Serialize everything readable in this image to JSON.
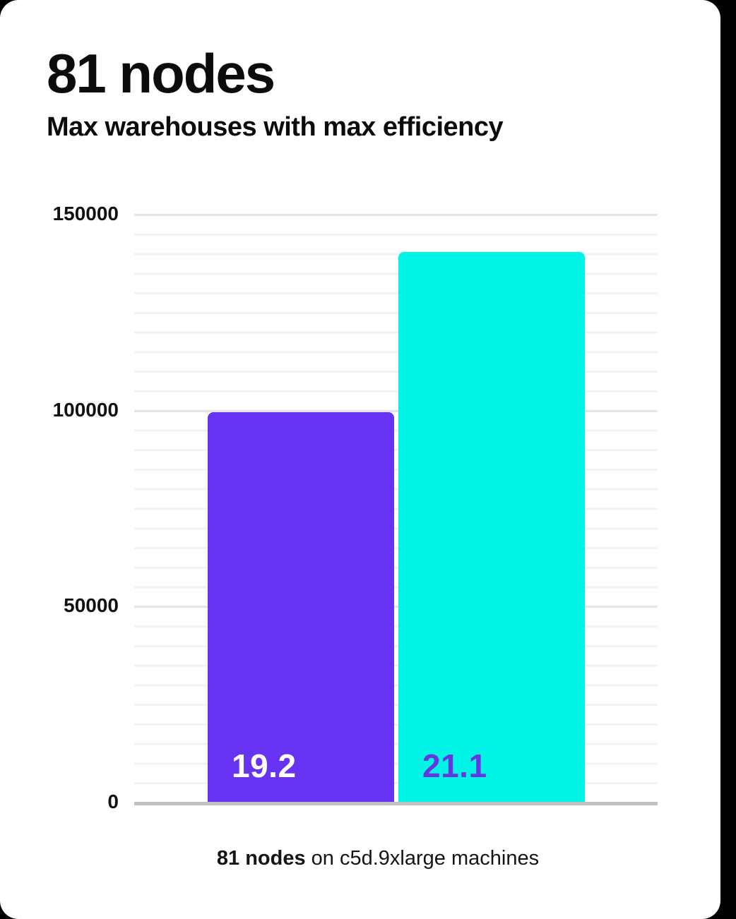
{
  "header": {
    "title": "81 nodes",
    "subtitle": "Max warehouses with max efficiency"
  },
  "caption": {
    "bold_part": "81 nodes",
    "rest_part": " on c5d.9xlarge machines"
  },
  "colors": {
    "purple": "#6733f2",
    "cyan": "#00f5e6",
    "white": "#ffffff",
    "cyan_bar_label_purple": "#6636e0",
    "card_background": "#ffffff",
    "axis_baseline": "#c2c2c6",
    "gridline_minor": "#f2f2f3",
    "gridline_major": "#e6e6e8"
  },
  "chart_data": {
    "type": "bar",
    "title": "81 nodes",
    "subtitle": "Max warehouses with max efficiency",
    "caption": "81 nodes on c5d.9xlarge machines",
    "categories": [
      "bar-1",
      "bar-2"
    ],
    "bars": [
      {
        "label": "19.2",
        "value": 99400,
        "color": "#6733f2",
        "label_color": "#ffffff"
      },
      {
        "label": "21.1",
        "value": 140300,
        "color": "#00f5e6",
        "label_color": "#6636e0"
      }
    ],
    "ylim": [
      0,
      150000
    ],
    "yticks": [
      "150000",
      "100000",
      "50000",
      "0"
    ],
    "ytick_values": [
      150000,
      100000,
      50000,
      0
    ],
    "grid": "horizontal minor gridlines every 5000, major lines at 50000 intervals",
    "legend": "none",
    "xlabel": "",
    "ylabel": ""
  }
}
